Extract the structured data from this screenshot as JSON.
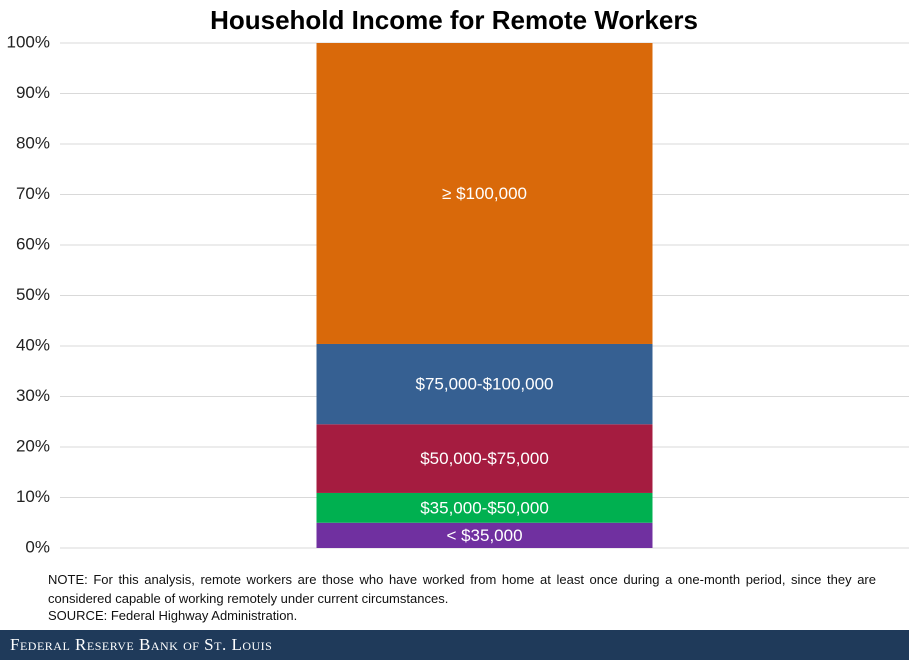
{
  "chart_data": {
    "type": "stacked_bar",
    "title": "Household Income for Remote Workers",
    "categories": [
      null
    ],
    "series": [
      {
        "name": "< $35,000",
        "color": "#7030a0",
        "values": [
          5
        ]
      },
      {
        "name": "$35,000-$50,000",
        "color": "#00b050",
        "values": [
          5.9
        ]
      },
      {
        "name": "$50,000-$75,000",
        "color": "#a51c40",
        "values": [
          13.6
        ]
      },
      {
        "name": "$75,000-$100,000",
        "color": "#366092",
        "values": [
          15.9
        ]
      },
      {
        "name": "≥ $100,000",
        "color": "#d9690a",
        "values": [
          59.6
        ]
      }
    ],
    "ylim": [
      0,
      100
    ],
    "yticks": [
      {
        "value": 0,
        "label": "0%"
      },
      {
        "value": 10,
        "label": "10%"
      },
      {
        "value": 20,
        "label": "20%"
      },
      {
        "value": 30,
        "label": "30%"
      },
      {
        "value": 40,
        "label": "40%"
      },
      {
        "value": 50,
        "label": "50%"
      },
      {
        "value": 60,
        "label": "60%"
      },
      {
        "value": 70,
        "label": "70%"
      },
      {
        "value": 80,
        "label": "80%"
      },
      {
        "value": 90,
        "label": "90%"
      },
      {
        "value": 100,
        "label": "100%"
      }
    ],
    "grid": true,
    "note": "NOTE: For this analysis, remote workers are those who have worked from home at least once during a one-month period, since they are considered capable of working remotely under current circumstances.",
    "source": "SOURCE: Federal Highway Administration.",
    "footer": "Federal Reserve Bank of St. Louis"
  }
}
